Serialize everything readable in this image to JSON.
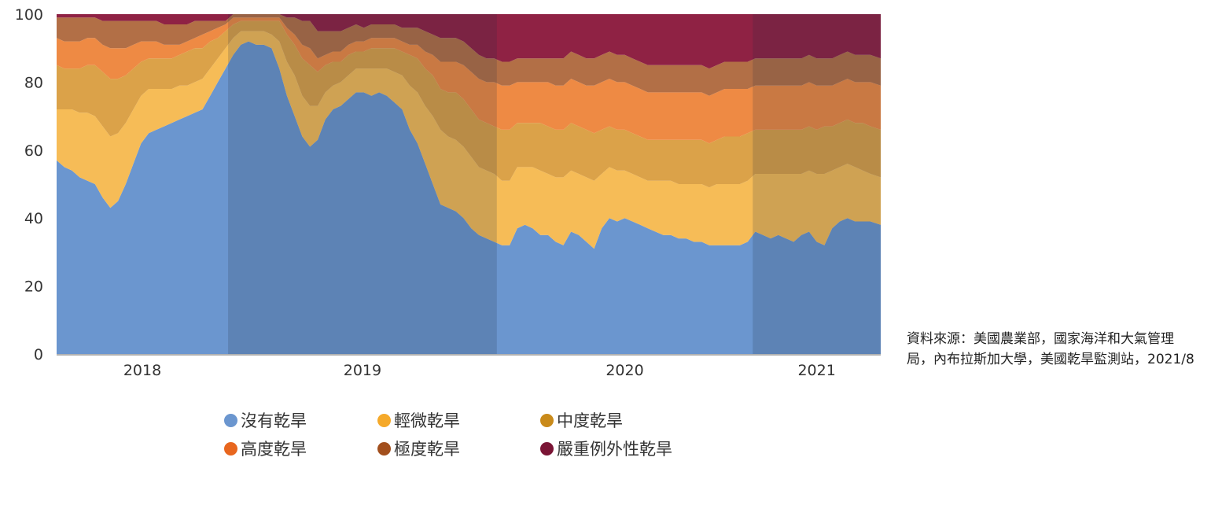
{
  "chart_data": {
    "type": "area",
    "stacked": true,
    "ylim": [
      0,
      100
    ],
    "yticks": [
      "0",
      "20",
      "40",
      "60",
      "80",
      "100"
    ],
    "year_labels": [
      "2018",
      "2019",
      "2020",
      "2021"
    ],
    "year_bands": [
      {
        "start": 2017.75,
        "end": 2018.42,
        "label": "2018"
      },
      {
        "start": 2018.42,
        "end": 2019.47,
        "label": "2019"
      },
      {
        "start": 2019.47,
        "end": 2020.47,
        "label": "2020"
      },
      {
        "start": 2020.47,
        "end": 2020.97,
        "label": "2021"
      }
    ],
    "x": [
      2017.75,
      2017.78,
      2017.81,
      2017.84,
      2017.87,
      2017.9,
      2017.93,
      2017.96,
      2017.99,
      2018.02,
      2018.05,
      2018.08,
      2018.11,
      2018.14,
      2018.17,
      2018.2,
      2018.23,
      2018.26,
      2018.29,
      2018.32,
      2018.35,
      2018.38,
      2018.41,
      2018.44,
      2018.47,
      2018.5,
      2018.53,
      2018.56,
      2018.59,
      2018.62,
      2018.65,
      2018.68,
      2018.71,
      2018.74,
      2018.77,
      2018.8,
      2018.83,
      2018.86,
      2018.89,
      2018.92,
      2018.95,
      2018.98,
      2019.01,
      2019.04,
      2019.07,
      2019.1,
      2019.13,
      2019.16,
      2019.19,
      2019.22,
      2019.25,
      2019.28,
      2019.31,
      2019.34,
      2019.37,
      2019.4,
      2019.43,
      2019.46,
      2019.49,
      2019.52,
      2019.55,
      2019.58,
      2019.61,
      2019.64,
      2019.67,
      2019.7,
      2019.73,
      2019.76,
      2019.79,
      2019.82,
      2019.85,
      2019.88,
      2019.91,
      2019.94,
      2019.97,
      2020.0,
      2020.03,
      2020.06,
      2020.09,
      2020.12,
      2020.15,
      2020.18,
      2020.21,
      2020.24,
      2020.27,
      2020.3,
      2020.33,
      2020.36,
      2020.39,
      2020.42,
      2020.45,
      2020.48,
      2020.51,
      2020.54,
      2020.57,
      2020.6,
      2020.63,
      2020.66,
      2020.69,
      2020.72,
      2020.75,
      2020.78,
      2020.81,
      2020.84,
      2020.87,
      2020.9,
      2020.93,
      2020.97
    ],
    "series": [
      {
        "name": "沒有乾旱",
        "color": "#6b96cf",
        "values": [
          57,
          55,
          54,
          52,
          51,
          50,
          46,
          43,
          45,
          50,
          56,
          62,
          65,
          66,
          67,
          68,
          69,
          70,
          71,
          72,
          76,
          80,
          84,
          88,
          91,
          92,
          91,
          91,
          90,
          84,
          76,
          70,
          64,
          61,
          63,
          69,
          72,
          73,
          75,
          77,
          77,
          76,
          77,
          76,
          74,
          72,
          66,
          62,
          56,
          50,
          44,
          43,
          42,
          40,
          37,
          35,
          34,
          33,
          32,
          32,
          37,
          38,
          37,
          35,
          35,
          33,
          32,
          36,
          35,
          33,
          31,
          37,
          40,
          39,
          40,
          39,
          38,
          37,
          36,
          35,
          35,
          34,
          34,
          33,
          33,
          32,
          32,
          32,
          32,
          32,
          33,
          36,
          35,
          34,
          35,
          34,
          33,
          35,
          36,
          33,
          32,
          37,
          39,
          40,
          39,
          39,
          39,
          38
        ]
      },
      {
        "name": "輕微乾旱",
        "color": "#f6bc57",
        "values": [
          15,
          17,
          18,
          19,
          20,
          20,
          21,
          21,
          20,
          18,
          16,
          14,
          13,
          12,
          11,
          10,
          10,
          9,
          9,
          9,
          8,
          7,
          6,
          5,
          4,
          3,
          4,
          4,
          4,
          8,
          10,
          12,
          12,
          12,
          10,
          8,
          7,
          7,
          7,
          7,
          7,
          8,
          7,
          8,
          9,
          10,
          13,
          15,
          17,
          20,
          22,
          21,
          21,
          21,
          21,
          20,
          20,
          20,
          19,
          19,
          18,
          17,
          18,
          19,
          18,
          19,
          20,
          18,
          18,
          19,
          20,
          16,
          15,
          15,
          14,
          14,
          14,
          14,
          15,
          16,
          16,
          16,
          16,
          17,
          17,
          17,
          18,
          18,
          18,
          18,
          18,
          17,
          18,
          19,
          18,
          19,
          20,
          18,
          18,
          20,
          21,
          17,
          16,
          16,
          16,
          15,
          14,
          14
        ]
      },
      {
        "name": "中度乾旱",
        "color": "#dba249",
        "values": [
          13,
          12,
          12,
          13,
          14,
          15,
          16,
          17,
          16,
          14,
          12,
          10,
          9,
          9,
          9,
          9,
          9,
          10,
          10,
          9,
          8,
          6,
          5,
          4,
          3,
          3,
          3,
          3,
          4,
          6,
          8,
          9,
          11,
          12,
          10,
          8,
          7,
          6,
          6,
          5,
          5,
          6,
          6,
          6,
          7,
          7,
          9,
          10,
          11,
          12,
          12,
          13,
          14,
          14,
          14,
          14,
          14,
          14,
          15,
          15,
          13,
          13,
          13,
          14,
          14,
          14,
          14,
          14,
          14,
          14,
          14,
          13,
          12,
          12,
          12,
          12,
          12,
          12,
          12,
          12,
          12,
          13,
          13,
          13,
          13,
          13,
          13,
          14,
          14,
          14,
          14,
          13,
          13,
          13,
          13,
          13,
          13,
          13,
          13,
          13,
          14,
          13,
          13,
          13,
          13,
          14,
          14,
          14
        ]
      },
      {
        "name": "高度乾旱",
        "color": "#ee8a44",
        "values": [
          8,
          8,
          8,
          8,
          8,
          8,
          8,
          9,
          9,
          8,
          7,
          6,
          5,
          5,
          4,
          4,
          3,
          3,
          3,
          4,
          3,
          3,
          2,
          2,
          1,
          1,
          1,
          1,
          1,
          1,
          2,
          3,
          4,
          5,
          4,
          3,
          3,
          3,
          3,
          3,
          3,
          3,
          3,
          3,
          3,
          3,
          3,
          4,
          5,
          6,
          8,
          9,
          9,
          10,
          11,
          12,
          12,
          13,
          13,
          13,
          12,
          12,
          12,
          12,
          13,
          13,
          13,
          13,
          13,
          13,
          14,
          14,
          14,
          14,
          14,
          14,
          14,
          14,
          14,
          14,
          14,
          14,
          14,
          14,
          14,
          14,
          14,
          14,
          14,
          14,
          13,
          13,
          13,
          13,
          13,
          13,
          13,
          13,
          13,
          13,
          12,
          12,
          12,
          12,
          12,
          12,
          13,
          13
        ]
      },
      {
        "name": "極度乾旱",
        "color": "#b26f46",
        "values": [
          6,
          7,
          7,
          7,
          6,
          6,
          7,
          8,
          8,
          8,
          7,
          6,
          6,
          6,
          6,
          6,
          6,
          5,
          5,
          4,
          3,
          2,
          1,
          1,
          1,
          1,
          1,
          1,
          1,
          1,
          3,
          5,
          7,
          8,
          8,
          7,
          6,
          6,
          5,
          5,
          4,
          4,
          4,
          4,
          4,
          4,
          5,
          5,
          6,
          6,
          7,
          7,
          7,
          7,
          7,
          7,
          7,
          7,
          7,
          7,
          7,
          7,
          7,
          7,
          7,
          8,
          8,
          8,
          8,
          8,
          8,
          8,
          8,
          8,
          8,
          8,
          8,
          8,
          8,
          8,
          8,
          8,
          8,
          8,
          8,
          8,
          8,
          8,
          8,
          8,
          8,
          8,
          8,
          8,
          8,
          8,
          8,
          8,
          8,
          8,
          8,
          8,
          8,
          8,
          8,
          8,
          8,
          8
        ]
      },
      {
        "name": "嚴重例外性乾旱",
        "color": "#8f2244",
        "values": [
          1,
          1,
          1,
          1,
          1,
          1,
          2,
          2,
          2,
          2,
          2,
          2,
          2,
          2,
          3,
          3,
          3,
          3,
          2,
          2,
          2,
          2,
          2,
          0,
          0,
          0,
          0,
          0,
          0,
          0,
          1,
          1,
          2,
          2,
          5,
          5,
          5,
          5,
          4,
          3,
          4,
          3,
          3,
          3,
          3,
          4,
          4,
          4,
          5,
          6,
          7,
          7,
          7,
          8,
          8,
          8,
          9,
          9,
          9,
          9,
          9,
          9,
          9,
          9,
          9,
          9,
          9,
          9,
          9,
          9,
          9,
          9,
          9,
          9,
          9,
          9,
          10,
          10,
          9,
          9,
          9,
          9,
          9,
          9,
          9,
          9,
          9,
          9,
          9,
          9,
          8,
          8,
          8,
          8,
          8,
          8,
          8,
          8,
          8,
          8,
          8,
          8,
          8,
          8,
          8,
          9,
          9,
          9
        ]
      }
    ],
    "shade_bands": [
      2,
      4
    ]
  },
  "legend": [
    {
      "label": "沒有乾旱",
      "color": "#6b96cf"
    },
    {
      "label": "輕微乾旱",
      "color": "#f5a92a"
    },
    {
      "label": "中度乾旱",
      "color": "#c98a1a"
    },
    {
      "label": "高度乾旱",
      "color": "#e8661e"
    },
    {
      "label": "極度乾旱",
      "color": "#a24f1d"
    },
    {
      "label": "嚴重例外性乾旱",
      "color": "#7a1535"
    }
  ],
  "source_text": "資料來源：美國農業部，國家海洋和大氣管理局，內布拉斯加大學，美國乾旱監測站，2021/8"
}
